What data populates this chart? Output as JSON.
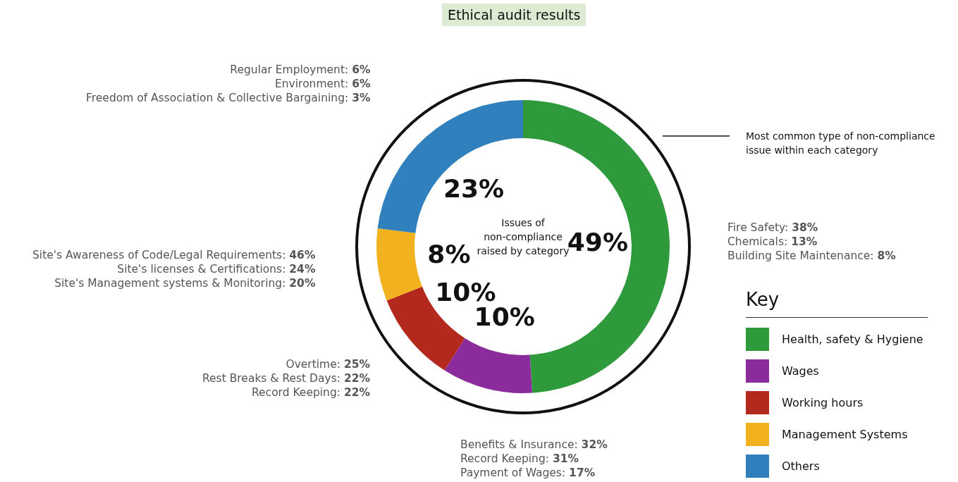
{
  "chart_data": {
    "type": "donut",
    "title": "Ethical audit results",
    "legend_title": "Key",
    "legend": "bottom right",
    "categories": [
      "Health, safety & Hygiene",
      "Wages",
      "Working hours",
      "Management Systems",
      "Others"
    ],
    "values": [
      49,
      10,
      10,
      8,
      23
    ],
    "colors": [
      "#2e9a3c",
      "#8b2b9c",
      "#b3291d",
      "#f2b21f",
      "#2f80bd"
    ],
    "value_labels": [
      "49%",
      "10%",
      "10%",
      "8%",
      "23%"
    ],
    "annotations": [
      "Issues of\nnon-compliance\nraised by category",
      "Most common type of non-compliance\nissue within each category",
      "Fire Safety: 38%\nChemicals: 13%\nBuilding Site Maintenance: 8%",
      "Benefits & Insurance: 32%\nRecord Keeping: 31%\nPayment of Wages: 17%",
      "Overtime: 25%\nRest Breaks & Rest Days: 22%\nRecord Keeping: 22%",
      "Site's Awareness of Code/Legal Requirements: 46%\nSite's licenses & Certifications: 24%\nSite's Management systems & Monitoring: 20%",
      "Regular Employment: 6%\nEnvironment: 6%\nFreedom of Association & Collective Bargaining: 3%"
    ]
  }
}
